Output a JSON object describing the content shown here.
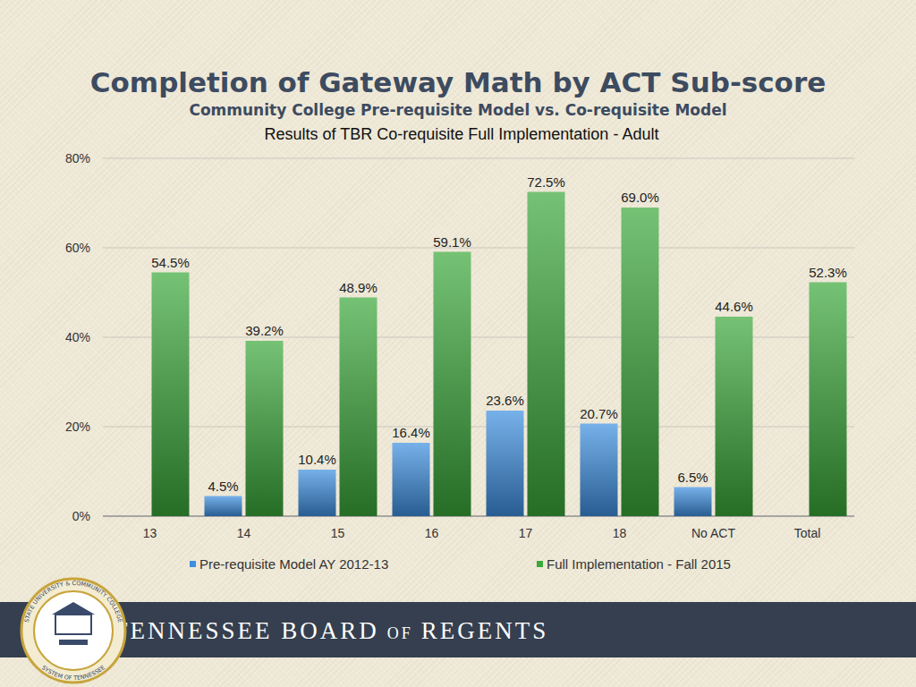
{
  "chart_data": {
    "type": "bar",
    "title": "Completion of Gateway Math by ACT Sub-score",
    "subtitle": [
      "Community College Pre-requisite Model vs. Co-requisite Model",
      "Results of TBR Co-requisite Full Implementation - Adult"
    ],
    "categories": [
      "13",
      "14",
      "15",
      "16",
      "17",
      "18",
      "No ACT",
      "Total"
    ],
    "series": [
      {
        "name": "Pre-requisite Model AY 2012-13",
        "color": "#3d8fe0",
        "values": [
          null,
          4.5,
          10.4,
          16.4,
          23.6,
          20.7,
          6.5,
          null
        ],
        "value_labels": [
          null,
          "4.5%",
          "10.4%",
          "16.4%",
          "23.6%",
          "20.7%",
          "6.5%",
          null
        ]
      },
      {
        "name": "Full Implementation - Fall 2015",
        "color": "#3aa83a",
        "values": [
          54.5,
          39.2,
          48.9,
          59.1,
          72.5,
          69.0,
          44.6,
          52.3
        ],
        "value_labels": [
          "54.5%",
          "39.2%",
          "48.9%",
          "59.1%",
          "72.5%",
          "69.0%",
          "44.6%",
          "52.3%"
        ]
      }
    ],
    "ylim": [
      0,
      80
    ],
    "yticks": [
      {
        "value": 0,
        "label": "0%"
      },
      {
        "value": 20,
        "label": "20%"
      },
      {
        "value": 40,
        "label": "40%"
      },
      {
        "value": 60,
        "label": "60%"
      },
      {
        "value": 80,
        "label": "80%"
      }
    ],
    "grid": true,
    "legend": "bottom",
    "data_labels": true
  },
  "footer": {
    "name": [
      "TENNESSEE BOARD",
      "OF",
      "REGENTS"
    ],
    "seal": [
      "STATE UNIVERSITY & COMMUNITY COLLEGE",
      "SYSTEM OF TENNESSEE"
    ]
  }
}
